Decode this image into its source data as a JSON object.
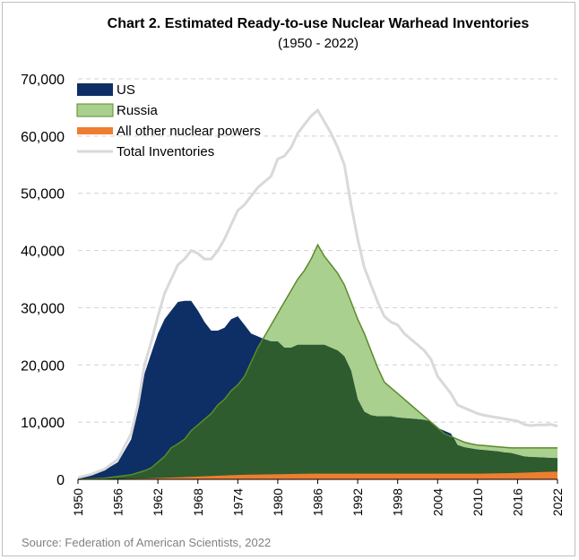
{
  "chart_data": {
    "type": "area",
    "title": "Chart 2. Estimated Ready-to-use Nuclear Warhead Inventories",
    "subtitle": "(1950 - 2022)",
    "source": "Source: Federation of American Scientists, 2022",
    "xlabel": "",
    "ylabel": "",
    "xlim": [
      1950,
      2022
    ],
    "ylim": [
      0,
      70000
    ],
    "yticks": [
      "0",
      "10,000",
      "20,000",
      "30,000",
      "40,000",
      "50,000",
      "60,000",
      "70,000"
    ],
    "xticks": [
      "1950",
      "1956",
      "1962",
      "1968",
      "1974",
      "1980",
      "1986",
      "1992",
      "1998",
      "2004",
      "2010",
      "2016",
      "2022"
    ],
    "grid": "horizontal-dashed",
    "legend": "top-left",
    "series": [
      {
        "name": "US",
        "style": "area",
        "color": "#0d2f66",
        "points": [
          [
            1950,
            300
          ],
          [
            1952,
            800
          ],
          [
            1954,
            1600
          ],
          [
            1956,
            3000
          ],
          [
            1958,
            7000
          ],
          [
            1959,
            12000
          ],
          [
            1960,
            18500
          ],
          [
            1961,
            22000
          ],
          [
            1962,
            25500
          ],
          [
            1963,
            28000
          ],
          [
            1964,
            29500
          ],
          [
            1965,
            31000
          ],
          [
            1966,
            31200
          ],
          [
            1967,
            31200
          ],
          [
            1968,
            29500
          ],
          [
            1969,
            27500
          ],
          [
            1970,
            26000
          ],
          [
            1971,
            26000
          ],
          [
            1972,
            26500
          ],
          [
            1973,
            28000
          ],
          [
            1974,
            28500
          ],
          [
            1975,
            27000
          ],
          [
            1976,
            25500
          ],
          [
            1977,
            25000
          ],
          [
            1978,
            24500
          ],
          [
            1979,
            24100
          ],
          [
            1980,
            24100
          ],
          [
            1981,
            23000
          ],
          [
            1982,
            23000
          ],
          [
            1983,
            23500
          ],
          [
            1984,
            23500
          ],
          [
            1985,
            23500
          ],
          [
            1986,
            23500
          ],
          [
            1987,
            23500
          ],
          [
            1988,
            23000
          ],
          [
            1989,
            22500
          ],
          [
            1990,
            21500
          ],
          [
            1991,
            19000
          ],
          [
            1992,
            14000
          ],
          [
            1993,
            11800
          ],
          [
            1994,
            11200
          ],
          [
            1995,
            11000
          ],
          [
            1996,
            11000
          ],
          [
            1997,
            11000
          ],
          [
            1998,
            10800
          ],
          [
            1999,
            10700
          ],
          [
            2000,
            10600
          ],
          [
            2001,
            10500
          ],
          [
            2002,
            10400
          ],
          [
            2003,
            10100
          ],
          [
            2004,
            9000
          ],
          [
            2005,
            8500
          ],
          [
            2006,
            8000
          ],
          [
            2007,
            6000
          ],
          [
            2008,
            5600
          ],
          [
            2009,
            5400
          ],
          [
            2010,
            5200
          ],
          [
            2011,
            5100
          ],
          [
            2012,
            5000
          ],
          [
            2013,
            4900
          ],
          [
            2014,
            4700
          ],
          [
            2015,
            4600
          ],
          [
            2016,
            4300
          ],
          [
            2017,
            4000
          ],
          [
            2018,
            3900
          ],
          [
            2019,
            3850
          ],
          [
            2020,
            3800
          ],
          [
            2021,
            3750
          ],
          [
            2022,
            3700
          ]
        ]
      },
      {
        "name": "Russia",
        "style": "area",
        "color": "#a9d08e",
        "border": "#5d8a2a",
        "points": [
          [
            1950,
            0
          ],
          [
            1952,
            100
          ],
          [
            1954,
            200
          ],
          [
            1956,
            500
          ],
          [
            1958,
            800
          ],
          [
            1960,
            1500
          ],
          [
            1961,
            2000
          ],
          [
            1962,
            3000
          ],
          [
            1963,
            4000
          ],
          [
            1964,
            5500
          ],
          [
            1965,
            6200
          ],
          [
            1966,
            7000
          ],
          [
            1967,
            8500
          ],
          [
            1968,
            9500
          ],
          [
            1969,
            10500
          ],
          [
            1970,
            11500
          ],
          [
            1971,
            13000
          ],
          [
            1972,
            14000
          ],
          [
            1973,
            15500
          ],
          [
            1974,
            16500
          ],
          [
            1975,
            18000
          ],
          [
            1976,
            20500
          ],
          [
            1977,
            23000
          ],
          [
            1978,
            25000
          ],
          [
            1979,
            27000
          ],
          [
            1980,
            29000
          ],
          [
            1981,
            31000
          ],
          [
            1982,
            33000
          ],
          [
            1983,
            35000
          ],
          [
            1984,
            36500
          ],
          [
            1985,
            38500
          ],
          [
            1986,
            41000
          ],
          [
            1987,
            39000
          ],
          [
            1988,
            37500
          ],
          [
            1989,
            36000
          ],
          [
            1990,
            34000
          ],
          [
            1991,
            31000
          ],
          [
            1992,
            28000
          ],
          [
            1993,
            25500
          ],
          [
            1994,
            22500
          ],
          [
            1995,
            19500
          ],
          [
            1996,
            17000
          ],
          [
            1997,
            16000
          ],
          [
            1998,
            15000
          ],
          [
            1999,
            14000
          ],
          [
            2000,
            13000
          ],
          [
            2001,
            12000
          ],
          [
            2002,
            11000
          ],
          [
            2003,
            10000
          ],
          [
            2004,
            9000
          ],
          [
            2005,
            8000
          ],
          [
            2006,
            7500
          ],
          [
            2007,
            7000
          ],
          [
            2008,
            6500
          ],
          [
            2009,
            6200
          ],
          [
            2010,
            6000
          ],
          [
            2011,
            5900
          ],
          [
            2012,
            5800
          ],
          [
            2013,
            5700
          ],
          [
            2014,
            5600
          ],
          [
            2015,
            5500
          ],
          [
            2016,
            5500
          ],
          [
            2017,
            5500
          ],
          [
            2018,
            5500
          ],
          [
            2019,
            5500
          ],
          [
            2020,
            5500
          ],
          [
            2021,
            5500
          ],
          [
            2022,
            5500
          ]
        ]
      },
      {
        "name": "All other nuclear powers",
        "style": "area",
        "color": "#ed7d31",
        "points": [
          [
            1950,
            0
          ],
          [
            1955,
            50
          ],
          [
            1960,
            150
          ],
          [
            1965,
            350
          ],
          [
            1970,
            600
          ],
          [
            1975,
            800
          ],
          [
            1980,
            900
          ],
          [
            1985,
            1000
          ],
          [
            1990,
            1000
          ],
          [
            1995,
            1000
          ],
          [
            2000,
            1000
          ],
          [
            2005,
            1000
          ],
          [
            2010,
            1000
          ],
          [
            2015,
            1100
          ],
          [
            2018,
            1200
          ],
          [
            2020,
            1300
          ],
          [
            2022,
            1350
          ]
        ]
      },
      {
        "name": "Total  Inventories",
        "style": "line",
        "color": "#d9d9d9",
        "points": [
          [
            1950,
            300
          ],
          [
            1952,
            900
          ],
          [
            1954,
            1800
          ],
          [
            1956,
            3500
          ],
          [
            1958,
            8000
          ],
          [
            1959,
            13000
          ],
          [
            1960,
            20000
          ],
          [
            1961,
            24000
          ],
          [
            1962,
            28500
          ],
          [
            1963,
            32500
          ],
          [
            1964,
            35000
          ],
          [
            1965,
            37500
          ],
          [
            1966,
            38500
          ],
          [
            1967,
            40000
          ],
          [
            1968,
            39500
          ],
          [
            1969,
            38500
          ],
          [
            1970,
            38500
          ],
          [
            1971,
            40000
          ],
          [
            1972,
            42000
          ],
          [
            1973,
            44500
          ],
          [
            1974,
            47000
          ],
          [
            1975,
            48000
          ],
          [
            1976,
            49500
          ],
          [
            1977,
            51000
          ],
          [
            1978,
            52000
          ],
          [
            1979,
            53000
          ],
          [
            1980,
            56000
          ],
          [
            1981,
            56500
          ],
          [
            1982,
            58000
          ],
          [
            1983,
            60500
          ],
          [
            1984,
            62000
          ],
          [
            1985,
            63500
          ],
          [
            1986,
            64500
          ],
          [
            1987,
            62500
          ],
          [
            1988,
            60500
          ],
          [
            1989,
            58000
          ],
          [
            1990,
            55000
          ],
          [
            1991,
            48000
          ],
          [
            1992,
            42000
          ],
          [
            1993,
            37000
          ],
          [
            1994,
            34000
          ],
          [
            1995,
            31000
          ],
          [
            1996,
            28500
          ],
          [
            1997,
            27500
          ],
          [
            1998,
            27000
          ],
          [
            1999,
            25500
          ],
          [
            2000,
            24500
          ],
          [
            2001,
            23500
          ],
          [
            2002,
            22500
          ],
          [
            2003,
            21000
          ],
          [
            2004,
            18000
          ],
          [
            2005,
            16500
          ],
          [
            2006,
            15000
          ],
          [
            2007,
            13000
          ],
          [
            2008,
            12500
          ],
          [
            2009,
            12000
          ],
          [
            2010,
            11500
          ],
          [
            2011,
            11200
          ],
          [
            2012,
            11000
          ],
          [
            2013,
            10800
          ],
          [
            2014,
            10600
          ],
          [
            2015,
            10400
          ],
          [
            2016,
            10200
          ],
          [
            2017,
            9600
          ],
          [
            2018,
            9400
          ],
          [
            2019,
            9500
          ],
          [
            2020,
            9500
          ],
          [
            2021,
            9600
          ],
          [
            2022,
            9300
          ]
        ]
      }
    ]
  }
}
